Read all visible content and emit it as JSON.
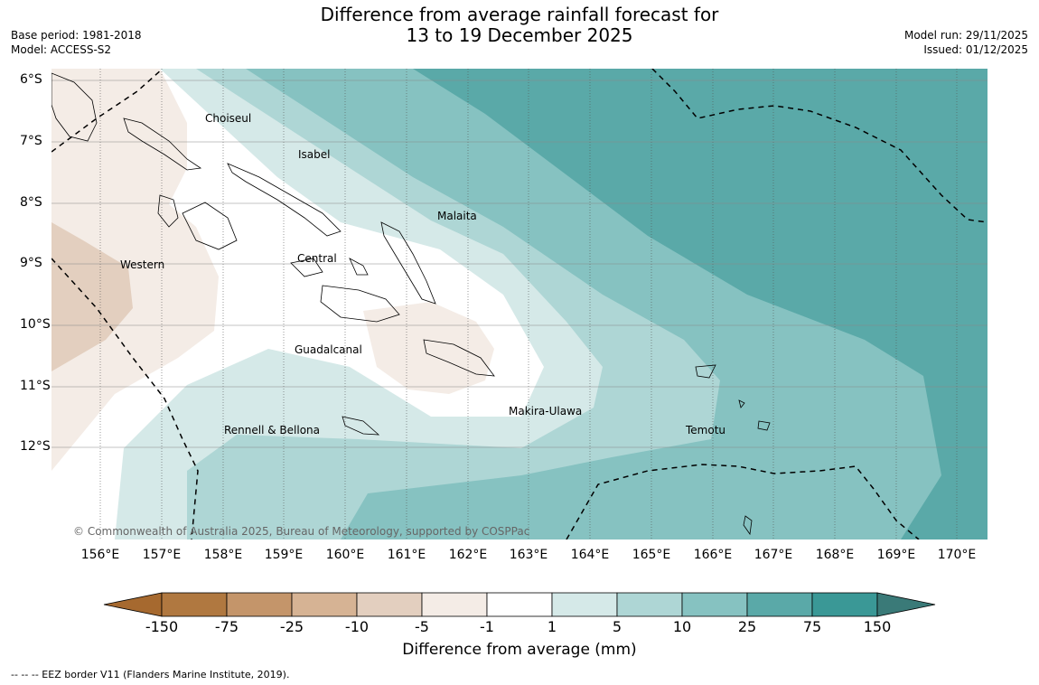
{
  "title": {
    "line1": "Difference from average rainfall forecast for",
    "line2": "13 to 19 December 2025"
  },
  "meta_left": {
    "base_period": "Base period: 1981-2018",
    "model": "Model: ACCESS-S2"
  },
  "meta_right": {
    "model_run": "Model run: 29/11/2025",
    "issued": "Issued: 01/12/2025"
  },
  "map": {
    "copyright": "© Commonwealth of Australia 2025, Bureau of Meteorology, supported by COSPPac",
    "longitude_labels": [
      "156°E",
      "157°E",
      "158°E",
      "159°E",
      "160°E",
      "161°E",
      "162°E",
      "163°E",
      "164°E",
      "165°E",
      "166°E",
      "167°E",
      "168°E",
      "169°E",
      "170°E"
    ],
    "latitude_labels": [
      "6°S",
      "7°S",
      "8°S",
      "9°S",
      "10°S",
      "11°S",
      "12°S"
    ],
    "provinces": [
      "Choiseul",
      "Isabel",
      "Malaita",
      "Central",
      "Western",
      "Guadalcanal",
      "Makira-Ulawa",
      "Rennell & Bellona",
      "Temotu"
    ]
  },
  "legend": {
    "title": "Difference from average (mm)",
    "ticks": [
      "-150",
      "-75",
      "-25",
      "-10",
      "-5",
      "-1",
      "1",
      "5",
      "10",
      "25",
      "75",
      "150"
    ],
    "colors": [
      "#a6692f",
      "#b07840",
      "#c4956a",
      "#d6b394",
      "#e3cfbf",
      "#f4ece6",
      "#ffffff",
      "#d5e9e8",
      "#aed6d5",
      "#86c2c1",
      "#5aa9a8",
      "#3a9896",
      "#3a7a78"
    ]
  },
  "footnote": "--  --  -- EEZ border V11 (Flanders Marine Institute, 2019)."
}
